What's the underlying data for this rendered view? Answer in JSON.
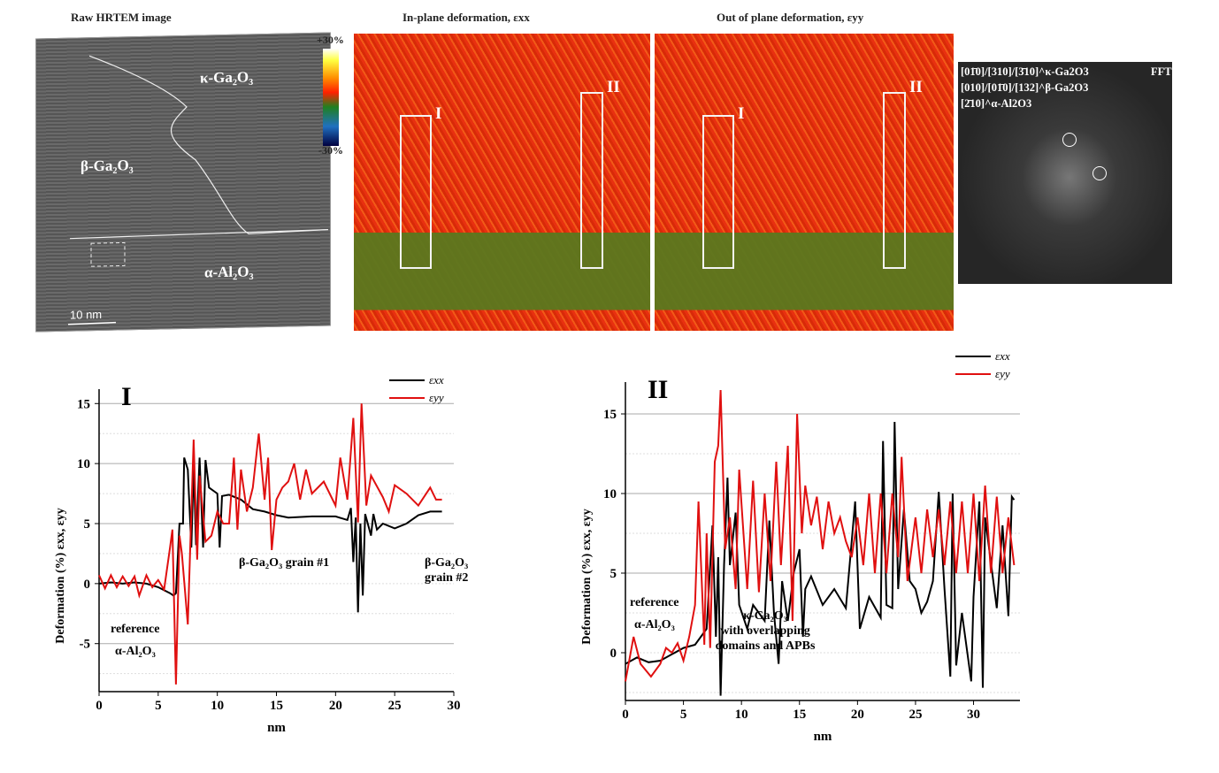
{
  "top": {
    "hrtem_title": "Raw HRTEM image",
    "inplane_title": "In-plane deformation, εxx",
    "outplane_title": "Out of plane deformation, εyy",
    "phase_kappa": "κ-Ga₂O₃",
    "phase_beta": "β-Ga₂O₃",
    "phase_alpha": "α-Al₂O₃",
    "scale_bar": "10 nm",
    "colorbar_max": "+30%",
    "colorbar_min": "-30%",
    "region_I": "I",
    "region_II": "II",
    "fft_title": "FFT",
    "fft_line1": "[01̄0]/[310]/[3̄10]^κ-Ga2O3",
    "fft_line2": "[010]/[01̄0]/[132]^β-Ga2O3",
    "fft_line3": "[2̄10]^α-Al2O3"
  },
  "chart_data": [
    {
      "type": "line",
      "panel_label": "I",
      "xlabel": "nm",
      "ylabel": "Deformation (%) εxx, εyy",
      "xlim": [
        0,
        30
      ],
      "ylim": [
        -9,
        16.2
      ],
      "xticks": [
        0,
        5,
        10,
        15,
        20,
        25,
        30
      ],
      "yticks": [
        -5,
        0,
        5,
        10,
        15
      ],
      "legend": "top-right",
      "grid": true,
      "annotations": [
        "reference α-Al₂O₃",
        "β-Ga₂O₃ grain #1",
        "β-Ga₂O₃ grain #2"
      ],
      "series": [
        {
          "name": "εxx",
          "color": "#000000",
          "x": [
            0,
            1,
            2,
            3,
            4,
            5,
            6,
            6.3,
            6.5,
            6.8,
            7.1,
            7.2,
            7.5,
            7.8,
            8,
            8.2,
            8.5,
            8.8,
            9,
            9.3,
            10,
            10.2,
            10.4,
            11,
            12,
            13,
            14,
            15,
            16,
            18,
            20,
            21,
            21.3,
            21.5,
            21.7,
            21.9,
            22.1,
            22.3,
            22.5,
            23,
            23.2,
            23.5,
            24,
            25,
            26,
            27,
            28,
            29
          ],
          "y": [
            0,
            0.1,
            0,
            0.1,
            0,
            -0.3,
            -0.8,
            -1,
            -0.8,
            5,
            5,
            10.5,
            9.5,
            3,
            9.8,
            3.2,
            10.5,
            3,
            10.3,
            8,
            7.5,
            3,
            7.3,
            7.4,
            7,
            6.2,
            6,
            5.7,
            5.5,
            5.6,
            5.6,
            5.3,
            6.3,
            1.8,
            5.5,
            -2.4,
            5,
            -1,
            5.8,
            4,
            5.8,
            4.5,
            5,
            4.6,
            5,
            5.7,
            6,
            6
          ]
        },
        {
          "name": "εyy",
          "color": "#e01010",
          "x": [
            0,
            0.5,
            1,
            1.5,
            2,
            2.5,
            3,
            3.4,
            4,
            4.5,
            5,
            5.5,
            6,
            6.2,
            6.5,
            6.8,
            7,
            7.5,
            8,
            8.3,
            8.5,
            9,
            9.5,
            10,
            10.5,
            11,
            11.4,
            11.7,
            12,
            12.5,
            13,
            13.5,
            14,
            14.3,
            14.6,
            15,
            15.5,
            16,
            16.5,
            17,
            17.5,
            18,
            19,
            20,
            20.4,
            21,
            21.5,
            21.9,
            22.2,
            22.6,
            23,
            24,
            24.5,
            25,
            26,
            27,
            28,
            28.5,
            29
          ],
          "y": [
            0.7,
            -0.4,
            0.7,
            -0.3,
            0.6,
            -0.2,
            0.6,
            -1,
            0.7,
            -0.3,
            0.3,
            -0.5,
            3,
            4.5,
            -8.4,
            4,
            2.5,
            -3.4,
            12,
            2,
            9,
            3.5,
            4,
            6,
            5,
            5,
            10.5,
            4.5,
            9.5,
            6,
            8,
            12.5,
            7,
            10.5,
            2.8,
            7,
            8,
            8.5,
            10,
            7,
            9.5,
            7.5,
            8.5,
            6.5,
            10.5,
            7,
            13.8,
            5.1,
            15,
            6.5,
            9,
            7.2,
            6,
            8.2,
            7.5,
            6.5,
            8,
            7,
            7
          ]
        }
      ]
    },
    {
      "type": "line",
      "panel_label": "II",
      "xlabel": "nm",
      "ylabel": "Deformation (%) εxx, εyy",
      "xlim": [
        0,
        34
      ],
      "ylim": [
        -3,
        17
      ],
      "xticks": [
        0,
        5,
        10,
        15,
        20,
        25,
        30
      ],
      "yticks": [
        0,
        5,
        10,
        15
      ],
      "legend": "top-right",
      "grid": true,
      "annotations": [
        "reference α-Al₂O₃",
        "κ-Ga₂O₃ with overlapping domains and APBs"
      ],
      "series": [
        {
          "name": "εxx",
          "color": "#000000",
          "x": [
            0,
            1,
            2,
            3,
            4,
            5,
            6,
            7,
            7.5,
            7.8,
            8,
            8.2,
            8.5,
            8.8,
            9,
            9.5,
            9.8,
            10.5,
            11,
            12,
            12.4,
            12.8,
            13.2,
            13.5,
            14,
            14.5,
            15,
            15.3,
            15.5,
            16,
            17,
            18,
            19,
            19.8,
            20.2,
            21,
            22,
            22.2,
            22.5,
            23,
            23.2,
            23.5,
            24,
            24.5,
            25,
            25.5,
            26,
            26.5,
            27,
            27.5,
            28,
            28.2,
            28.5,
            29,
            29.8,
            30,
            30.5,
            30.8,
            31,
            32,
            32.5,
            33,
            33.3,
            33.5
          ],
          "y": [
            -0.7,
            -0.3,
            -0.6,
            -0.5,
            -0.1,
            0.3,
            0.5,
            1.5,
            8,
            1,
            6,
            -2.7,
            5.5,
            11,
            5.5,
            8.8,
            3,
            1.5,
            3,
            2,
            8.3,
            2.5,
            -0.7,
            4.5,
            2,
            5,
            6.5,
            1,
            4,
            4.8,
            3,
            4,
            2.8,
            9.5,
            1.5,
            3.5,
            2.2,
            13.3,
            3,
            2.8,
            14.5,
            4,
            9,
            4.5,
            4,
            2.5,
            3.2,
            4.5,
            10.1,
            4,
            -1.5,
            10,
            -0.8,
            2.5,
            -1.8,
            3.5,
            9.5,
            -2.2,
            8.5,
            2.8,
            8,
            2.3,
            9.8,
            9.6
          ]
        },
        {
          "name": "εyy",
          "color": "#e01010",
          "x": [
            0,
            0.7,
            1.3,
            2.2,
            3,
            3.5,
            4,
            4.5,
            5,
            5.5,
            6,
            6.3,
            6.8,
            7,
            7.3,
            7.7,
            8,
            8.2,
            8.6,
            9,
            9.5,
            9.8,
            10.5,
            11,
            11.5,
            12,
            12.5,
            13,
            13.4,
            14,
            14.4,
            14.8,
            15.2,
            15.5,
            16,
            16.5,
            17,
            17.5,
            18,
            18.5,
            19,
            19.5,
            20,
            20.5,
            21,
            21.5,
            22,
            22.5,
            23,
            23.5,
            23.8,
            24.3,
            25,
            25.5,
            26,
            26.5,
            27,
            27.5,
            28,
            28.5,
            29,
            29.5,
            30,
            30.5,
            31,
            31.5,
            32,
            32.5,
            33,
            33.5
          ],
          "y": [
            -1.8,
            1,
            -0.7,
            -1.5,
            -0.7,
            0.3,
            0,
            0.6,
            -0.5,
            1,
            3,
            9.5,
            0.5,
            7.5,
            0.3,
            12,
            13,
            16.5,
            6.5,
            8.5,
            4,
            11.5,
            4,
            10.8,
            3.8,
            10,
            4.5,
            12,
            5.5,
            13,
            2,
            15,
            7.5,
            10.5,
            8,
            9.8,
            6.5,
            9.5,
            7.5,
            8.5,
            7,
            6,
            8.5,
            5.5,
            10,
            5,
            10,
            5,
            10,
            6,
            12.3,
            4.5,
            8.5,
            5,
            9,
            6,
            9,
            5.5,
            9.5,
            5,
            9.5,
            5,
            10,
            4.5,
            10.5,
            5,
            9.8,
            5,
            8.5,
            5.5
          ]
        }
      ]
    }
  ]
}
